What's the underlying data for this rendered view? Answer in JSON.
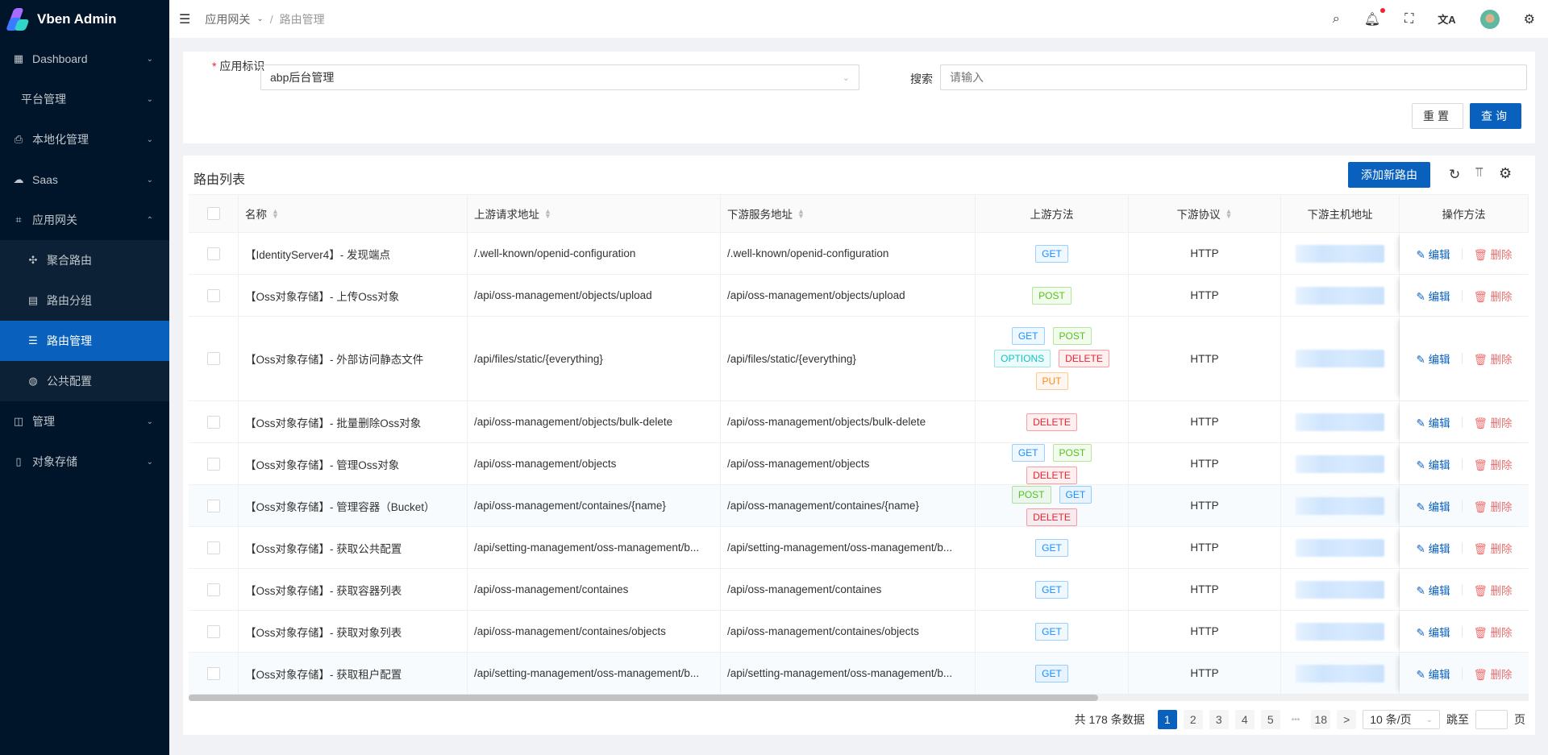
{
  "app": {
    "title": "Vben Admin"
  },
  "sidebar": {
    "items": [
      {
        "label": "Dashboard",
        "icon": "dashboard-icon",
        "glyph": "▦",
        "chev": "⌄"
      },
      {
        "label": "平台管理",
        "icon": "",
        "glyph": "",
        "chev": "⌄"
      },
      {
        "label": "本地化管理",
        "icon": "localization-icon",
        "glyph": "⎙",
        "chev": "⌄"
      },
      {
        "label": "Saas",
        "icon": "saas-icon",
        "glyph": "☁",
        "chev": "⌄"
      },
      {
        "label": "应用网关",
        "icon": "gateway-icon",
        "glyph": "⌗",
        "chev": "⌃",
        "open": true
      },
      {
        "label": "聚合路由",
        "icon": "aggregate-icon",
        "glyph": "✣",
        "sub": true
      },
      {
        "label": "路由分组",
        "icon": "group-icon",
        "glyph": "▤",
        "sub": true
      },
      {
        "label": "路由管理",
        "icon": "list-icon",
        "glyph": "☰",
        "sub": true,
        "active": true
      },
      {
        "label": "公共配置",
        "icon": "globe-icon",
        "glyph": "◍",
        "sub": true
      },
      {
        "label": "管理",
        "icon": "manage-icon",
        "glyph": "◫",
        "chev": "⌄"
      },
      {
        "label": "对象存储",
        "icon": "file-icon",
        "glyph": "▯",
        "chev": "⌄"
      }
    ]
  },
  "header": {
    "breadcrumb": [
      "应用网关",
      "路由管理"
    ],
    "breadcrumb_sep": "/"
  },
  "filter": {
    "app_label": "应用标识",
    "app_value": "abp后台管理",
    "search_label": "搜索",
    "search_placeholder": "请输入",
    "reset": "重置",
    "query": "查询"
  },
  "table": {
    "title": "路由列表",
    "add_button": "添加新路由",
    "columns": [
      "名称",
      "上游请求地址",
      "下游服务地址",
      "上游方法",
      "下游协议",
      "下游主机地址",
      "操作方法"
    ],
    "edit": "编辑",
    "delete": "删除",
    "rows": [
      {
        "name": "【IdentityServer4】- 发现端点",
        "up": "/.well-known/openid-configuration",
        "down": "/.well-known/openid-configuration",
        "methods": [
          "GET"
        ],
        "proto": "HTTP"
      },
      {
        "name": "【Oss对象存储】- 上传Oss对象",
        "up": "/api/oss-management/objects/upload",
        "down": "/api/oss-management/objects/upload",
        "methods": [
          "POST"
        ],
        "proto": "HTTP"
      },
      {
        "name": "【Oss对象存储】- 外部访问静态文件",
        "up": "/api/files/static/{everything}",
        "down": "/api/files/static/{everything}",
        "methods": [
          "GET",
          "POST",
          "OPTIONS",
          "DELETE",
          "PUT"
        ],
        "proto": "HTTP"
      },
      {
        "name": "【Oss对象存储】- 批量删除Oss对象",
        "up": "/api/oss-management/objects/bulk-delete",
        "down": "/api/oss-management/objects/bulk-delete",
        "methods": [
          "DELETE"
        ],
        "proto": "HTTP"
      },
      {
        "name": "【Oss对象存储】- 管理Oss对象",
        "up": "/api/oss-management/objects",
        "down": "/api/oss-management/objects",
        "methods": [
          "GET",
          "POST",
          "DELETE"
        ],
        "proto": "HTTP"
      },
      {
        "name": "【Oss对象存储】- 管理容器（Bucket）",
        "up": "/api/oss-management/containes/{name}",
        "down": "/api/oss-management/containes/{name}",
        "methods": [
          "POST",
          "GET",
          "DELETE"
        ],
        "proto": "HTTP"
      },
      {
        "name": "【Oss对象存储】- 获取公共配置",
        "up": "/api/setting-management/oss-management/b...",
        "down": "/api/setting-management/oss-management/b...",
        "methods": [
          "GET"
        ],
        "proto": "HTTP"
      },
      {
        "name": "【Oss对象存储】- 获取容器列表",
        "up": "/api/oss-management/containes",
        "down": "/api/oss-management/containes",
        "methods": [
          "GET"
        ],
        "proto": "HTTP"
      },
      {
        "name": "【Oss对象存储】- 获取对象列表",
        "up": "/api/oss-management/containes/objects",
        "down": "/api/oss-management/containes/objects",
        "methods": [
          "GET"
        ],
        "proto": "HTTP"
      },
      {
        "name": "【Oss对象存储】- 获取租户配置",
        "up": "/api/setting-management/oss-management/b...",
        "down": "/api/setting-management/oss-management/b...",
        "methods": [
          "GET"
        ],
        "proto": "HTTP"
      }
    ]
  },
  "method_colors": {
    "GET": "#1890ff",
    "POST": "#52c41a",
    "OPTIONS": "#13c2c2",
    "DELETE": "#f5222d",
    "PUT": "#fa8c16"
  },
  "pagination": {
    "total": "共 178 条数据",
    "pages": [
      "1",
      "2",
      "3",
      "4",
      "5"
    ],
    "ellipsis": "•••",
    "last": "18",
    "next": ">",
    "page_size": "10 条/页",
    "jump_label": "跳至",
    "page_suffix": "页",
    "current": 1
  },
  "colors": {
    "primary": "#0960bd",
    "sidebar": "#001529"
  }
}
